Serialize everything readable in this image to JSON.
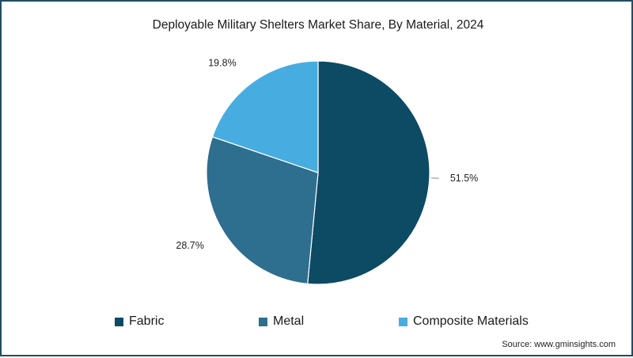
{
  "chart_data": {
    "type": "pie",
    "title": "Deployable Military Shelters Market Share, By Material, 2024",
    "slices": [
      {
        "name": "Fabric",
        "value": 51.5,
        "label": "51.5%",
        "color": "#0d4a64"
      },
      {
        "name": "Metal",
        "value": 28.7,
        "label": "28.7%",
        "color": "#2e6e8e"
      },
      {
        "name": "Composite Materials",
        "value": 19.8,
        "label": "19.8%",
        "color": "#47ade0"
      }
    ],
    "legend_position": "bottom"
  },
  "source": "Source: www.gminsights.com",
  "colors": {
    "border": "#1f4e63",
    "slice_edge": "#ffffff"
  }
}
